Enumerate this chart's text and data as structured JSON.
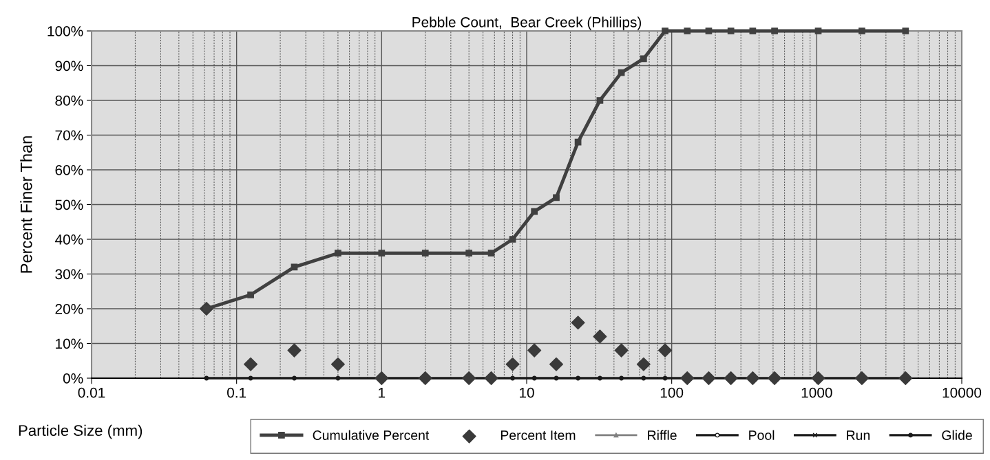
{
  "chart_data": {
    "type": "line",
    "title": "Pebble Count,  Bear Creek (Phillips)",
    "xlabel": "Particle Size (mm)",
    "ylabel": "Percent Finer Than",
    "x": [
      0.062,
      0.125,
      0.25,
      0.5,
      1,
      2,
      4,
      5.7,
      8,
      11.3,
      16,
      22.6,
      32,
      45,
      64,
      90,
      128,
      180,
      256,
      362,
      512,
      1024,
      2048,
      4096
    ],
    "series": [
      {
        "name": "Riffle",
        "color": "#808080",
        "marker": "triangle",
        "values": [
          null,
          null,
          null,
          null,
          null,
          null,
          null,
          null,
          null,
          null,
          null,
          null,
          null,
          null,
          null,
          null,
          null,
          null,
          null,
          null,
          null,
          null,
          null,
          null
        ]
      },
      {
        "name": "Pool",
        "color": "#1a1a1a",
        "marker": "circle",
        "values": [
          null,
          null,
          null,
          null,
          null,
          null,
          null,
          null,
          null,
          null,
          null,
          null,
          null,
          null,
          null,
          null,
          null,
          null,
          null,
          null,
          null,
          null,
          null,
          null
        ]
      },
      {
        "name": "Run",
        "color": "#1a1a1a",
        "marker": "cross",
        "values": [
          null,
          null,
          null,
          null,
          null,
          null,
          null,
          null,
          null,
          null,
          null,
          null,
          null,
          null,
          null,
          null,
          null,
          null,
          null,
          null,
          null,
          null,
          null,
          null
        ]
      },
      {
        "name": "Glide",
        "color": "#1a1a1a",
        "marker": "circle",
        "values": [
          0,
          0,
          0,
          0,
          0,
          0,
          0,
          0,
          0,
          0,
          0,
          0,
          0,
          0,
          0,
          0,
          0,
          0,
          0,
          0,
          0,
          0,
          0,
          0
        ]
      },
      {
        "name": "Percent Item",
        "type": "scatter",
        "color": "#3a3a3a",
        "marker": "diamond",
        "values": [
          20,
          4,
          8,
          4,
          0,
          0,
          0,
          0,
          4,
          8,
          4,
          16,
          12,
          8,
          4,
          8,
          0,
          0,
          0,
          0,
          0,
          0,
          0,
          0
        ]
      },
      {
        "name": "Cumulative Percent",
        "color": "#404040",
        "marker": "square",
        "values": [
          20,
          24,
          32,
          36,
          36,
          36,
          36,
          36,
          40,
          48,
          52,
          68,
          80,
          88,
          92,
          100,
          100,
          100,
          100,
          100,
          100,
          100,
          100,
          100
        ]
      }
    ],
    "log": "x",
    "grid": true,
    "legend": "bottom",
    "xlim": [
      0.01,
      10000
    ],
    "xticks": [
      0.01,
      0.1,
      1,
      10,
      100,
      1000,
      10000
    ],
    "ylim": [
      0,
      100
    ],
    "yticks": [
      {
        "value": 0,
        "label": "0%"
      },
      {
        "value": 10,
        "label": "10%"
      },
      {
        "value": 20,
        "label": "20%"
      },
      {
        "value": 30,
        "label": "30%"
      },
      {
        "value": 40,
        "label": "40%"
      },
      {
        "value": 50,
        "label": "50%"
      },
      {
        "value": 60,
        "label": "60%"
      },
      {
        "value": 70,
        "label": "70%"
      },
      {
        "value": 80,
        "label": "80%"
      },
      {
        "value": 90,
        "label": "90%"
      },
      {
        "value": 100,
        "label": "100%"
      }
    ]
  }
}
